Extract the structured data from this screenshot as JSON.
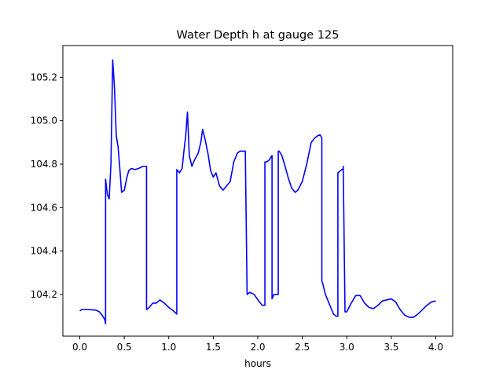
{
  "chart_data": {
    "type": "line",
    "title": "Water Depth h at gauge 125",
    "xlabel": "hours",
    "ylabel": "",
    "xlim": [
      -0.19,
      4.19
    ],
    "ylim": [
      104.008,
      105.346
    ],
    "xticks": [
      0.0,
      0.5,
      1.0,
      1.5,
      2.0,
      2.5,
      3.0,
      3.5,
      4.0
    ],
    "xtick_labels": [
      "0.0",
      "0.5",
      "1.0",
      "1.5",
      "2.0",
      "2.5",
      "3.0",
      "3.5",
      "4.0"
    ],
    "yticks": [
      104.2,
      104.4,
      104.6,
      104.8,
      105.0,
      105.2
    ],
    "ytick_labels": [
      "104.2",
      "104.4",
      "104.6",
      "104.8",
      "105.0",
      "105.2"
    ],
    "grid": false,
    "legend": "none",
    "series": [
      {
        "color": "#0000ff",
        "x": [
          0.0,
          0.02,
          0.1,
          0.18,
          0.22,
          0.25,
          0.28,
          0.29,
          0.29,
          0.31,
          0.33,
          0.35,
          0.37,
          0.39,
          0.41,
          0.43,
          0.45,
          0.47,
          0.5,
          0.53,
          0.55,
          0.58,
          0.62,
          0.66,
          0.71,
          0.74,
          0.75,
          0.75,
          0.78,
          0.82,
          0.86,
          0.9,
          0.95,
          1.0,
          1.05,
          1.09,
          1.09,
          1.12,
          1.15,
          1.17,
          1.19,
          1.21,
          1.23,
          1.26,
          1.29,
          1.33,
          1.36,
          1.38,
          1.41,
          1.44,
          1.47,
          1.5,
          1.53,
          1.57,
          1.61,
          1.65,
          1.69,
          1.73,
          1.77,
          1.8,
          1.83,
          1.86,
          1.88,
          1.88,
          1.91,
          1.96,
          2.01,
          2.05,
          2.08,
          2.08,
          2.1,
          2.13,
          2.16,
          2.16,
          2.18,
          2.2,
          2.23,
          2.23,
          2.24,
          2.27,
          2.3,
          2.34,
          2.38,
          2.42,
          2.45,
          2.5,
          2.55,
          2.6,
          2.64,
          2.67,
          2.7,
          2.72,
          2.72,
          2.73,
          2.76,
          2.79,
          2.82,
          2.85,
          2.88,
          2.9,
          2.9,
          2.93,
          2.96,
          2.96,
          2.98,
          3.0,
          3.05,
          3.1,
          3.15,
          3.2,
          3.25,
          3.3,
          3.35,
          3.4,
          3.45,
          3.5,
          3.55,
          3.6,
          3.65,
          3.7,
          3.75,
          3.8,
          3.85,
          3.9,
          3.95,
          4.0
        ],
        "y": [
          104.125,
          104.13,
          104.13,
          104.128,
          104.12,
          104.105,
          104.085,
          104.065,
          104.73,
          104.66,
          104.64,
          104.8,
          105.28,
          105.15,
          104.93,
          104.88,
          104.78,
          104.67,
          104.68,
          104.74,
          104.77,
          104.78,
          104.775,
          104.78,
          104.79,
          104.79,
          104.79,
          104.13,
          104.14,
          104.16,
          104.16,
          104.175,
          104.16,
          104.14,
          104.125,
          104.11,
          104.775,
          104.76,
          104.78,
          104.86,
          104.93,
          105.04,
          104.84,
          104.79,
          104.82,
          104.85,
          104.9,
          104.96,
          104.91,
          104.85,
          104.77,
          104.74,
          104.76,
          104.7,
          104.68,
          104.7,
          104.72,
          104.81,
          104.85,
          104.86,
          104.86,
          104.86,
          104.2,
          104.2,
          104.21,
          104.2,
          104.17,
          104.15,
          104.15,
          104.81,
          104.81,
          104.82,
          104.84,
          104.18,
          104.2,
          104.2,
          104.2,
          104.86,
          104.86,
          104.84,
          104.8,
          104.74,
          104.69,
          104.67,
          104.68,
          104.72,
          104.8,
          104.9,
          104.92,
          104.93,
          104.935,
          104.92,
          104.26,
          104.25,
          104.2,
          104.17,
          104.14,
          104.11,
          104.1,
          104.1,
          104.76,
          104.77,
          104.78,
          104.79,
          104.12,
          104.12,
          104.16,
          104.195,
          104.195,
          104.16,
          104.14,
          104.135,
          104.15,
          104.17,
          104.175,
          104.18,
          104.165,
          104.13,
          104.105,
          104.095,
          104.095,
          104.11,
          104.13,
          104.15,
          104.165,
          104.17
        ]
      }
    ]
  }
}
